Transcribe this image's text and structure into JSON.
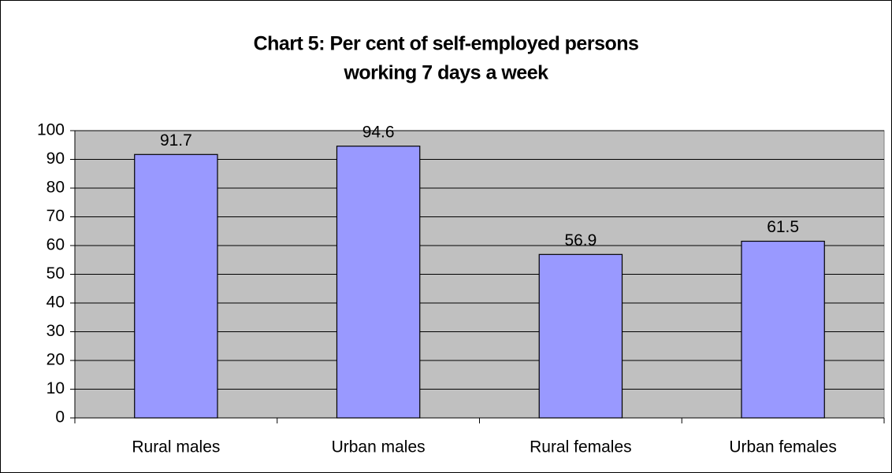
{
  "chart_data": {
    "type": "bar",
    "title": [
      "Chart 5: Per cent of self-employed persons",
      "working 7 days a week"
    ],
    "categories": [
      "Rural males",
      "Urban males",
      "Rural females",
      "Urban females"
    ],
    "values": [
      91.7,
      94.6,
      56.9,
      61.5
    ],
    "color": "#9999ff",
    "ylim": [
      0,
      100
    ],
    "yticks": [
      0,
      10,
      20,
      30,
      40,
      50,
      60,
      70,
      80,
      90,
      100
    ],
    "grid": true
  }
}
